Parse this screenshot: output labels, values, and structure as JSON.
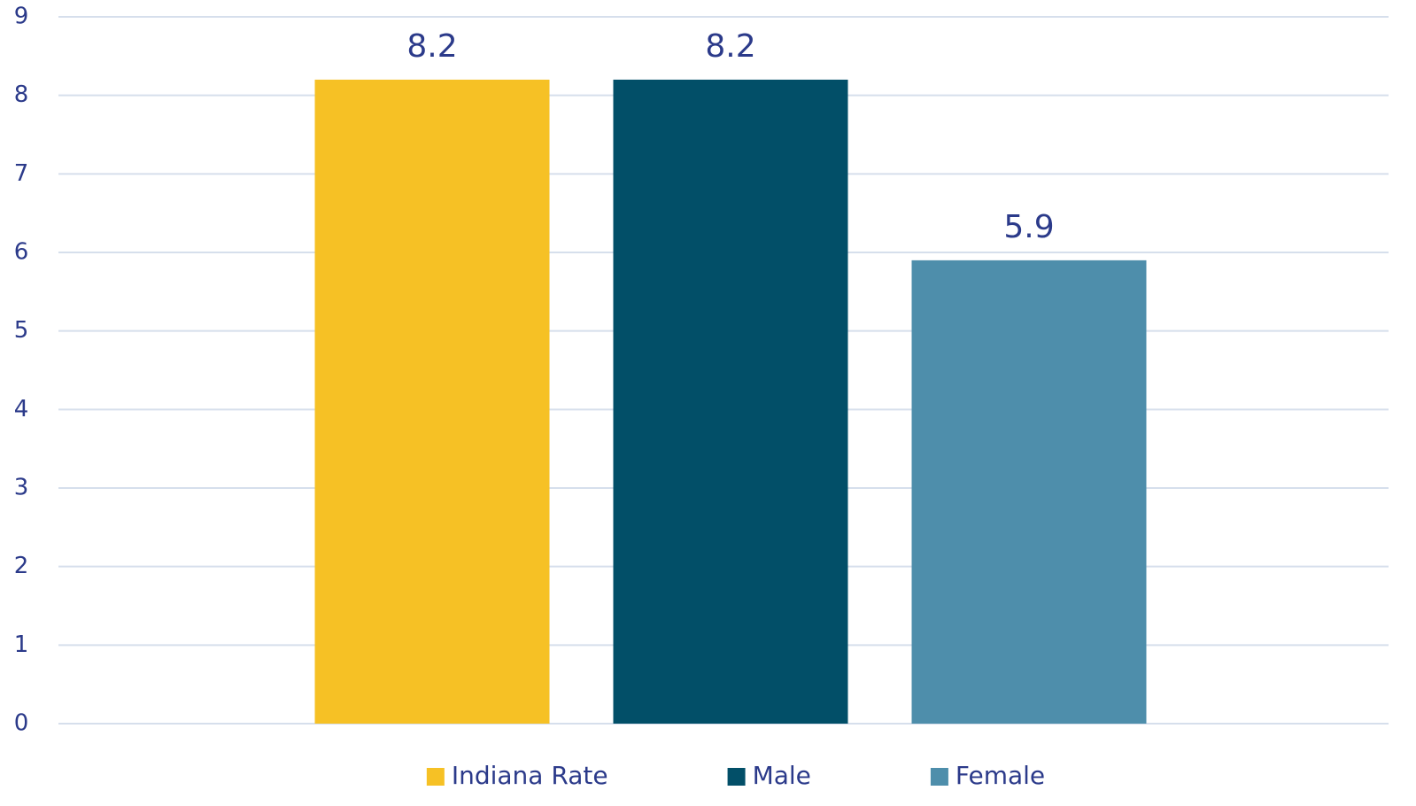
{
  "chart_data": {
    "type": "bar",
    "categories": [
      null
    ],
    "series": [
      {
        "name": "Indiana Rate",
        "color": "#f6c125",
        "values": [
          8.2
        ]
      },
      {
        "name": "Male",
        "color": "#024f68",
        "values": [
          8.2
        ]
      },
      {
        "name": "Female",
        "color": "#4e8eab",
        "values": [
          5.9
        ]
      }
    ],
    "ylim": [
      0,
      9
    ],
    "yticks": [
      0,
      1,
      2,
      3,
      4,
      5,
      6,
      7,
      8,
      9
    ],
    "grid": true,
    "data_labels": true,
    "legend": "bottom"
  }
}
